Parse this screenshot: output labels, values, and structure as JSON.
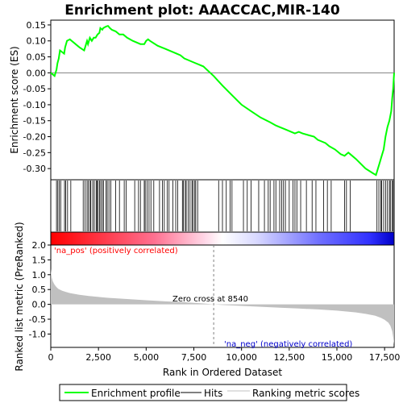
{
  "chart_data": {
    "type": "line",
    "title": "Enrichment plot: AAACCAC,MIR-140",
    "top_panel": {
      "ylabel": "Enrichment score (ES)",
      "ylim": [
        -0.335,
        0.165
      ],
      "yticks": [
        0.15,
        0.1,
        0.05,
        0.0,
        -0.05,
        -0.1,
        -0.15,
        -0.2,
        -0.25,
        -0.3
      ],
      "ytick_labels": [
        "0.15",
        "0.10",
        "0.05",
        "0.00",
        "-0.05",
        "-0.10",
        "-0.15",
        "-0.20",
        "-0.25",
        "-0.30"
      ],
      "series": [
        {
          "name": "Enrichment profile",
          "color": "#00ff00",
          "x": [
            0,
            200,
            300,
            350,
            420,
            480,
            700,
            750,
            850,
            1000,
            1500,
            1750,
            1800,
            1900,
            1950,
            2050,
            2150,
            2250,
            2350,
            2450,
            2550,
            2600,
            2700,
            2750,
            2900,
            3000,
            3100,
            3200,
            3400,
            3600,
            3800,
            4000,
            4300,
            4500,
            4700,
            4900,
            5000,
            5100,
            5200,
            5600,
            5800,
            6000,
            6200,
            6400,
            6600,
            6800,
            7000,
            7200,
            7400,
            7600,
            7800,
            8000,
            8540,
            9000,
            9500,
            10000,
            10500,
            11000,
            11500,
            11800,
            12000,
            12200,
            12400,
            12600,
            12800,
            13000,
            13200,
            13500,
            13800,
            14000,
            14200,
            14400,
            14600,
            14900,
            15200,
            15400,
            15600,
            15700,
            16000,
            16500,
            16900,
            17050,
            17150,
            17250,
            17350,
            17450,
            17550,
            17650,
            17750,
            17850,
            17900,
            17950,
            17980,
            18000
          ],
          "y": [
            0.0,
            -0.01,
            0.01,
            0.03,
            0.045,
            0.07,
            0.06,
            0.08,
            0.1,
            0.105,
            0.08,
            0.07,
            0.08,
            0.1,
            0.09,
            0.11,
            0.1,
            0.11,
            0.11,
            0.12,
            0.125,
            0.14,
            0.135,
            0.14,
            0.145,
            0.147,
            0.14,
            0.135,
            0.13,
            0.12,
            0.12,
            0.11,
            0.1,
            0.095,
            0.09,
            0.09,
            0.1,
            0.105,
            0.1,
            0.085,
            0.08,
            0.075,
            0.07,
            0.065,
            0.06,
            0.055,
            0.045,
            0.04,
            0.035,
            0.03,
            0.025,
            0.02,
            -0.01,
            -0.04,
            -0.07,
            -0.1,
            -0.12,
            -0.14,
            -0.155,
            -0.165,
            -0.17,
            -0.175,
            -0.18,
            -0.185,
            -0.19,
            -0.185,
            -0.19,
            -0.195,
            -0.2,
            -0.21,
            -0.215,
            -0.22,
            -0.23,
            -0.24,
            -0.255,
            -0.26,
            -0.25,
            -0.255,
            -0.27,
            -0.3,
            -0.315,
            -0.32,
            -0.3,
            -0.28,
            -0.26,
            -0.24,
            -0.2,
            -0.17,
            -0.15,
            -0.12,
            -0.08,
            -0.05,
            -0.02,
            0.0
          ]
        }
      ]
    },
    "hits_panel": {
      "hit_positions": [
        300,
        370,
        450,
        520,
        720,
        780,
        880,
        1050,
        1700,
        1800,
        1900,
        1960,
        2060,
        2100,
        2200,
        2280,
        2380,
        2420,
        2480,
        2560,
        2620,
        2700,
        2760,
        2900,
        2960,
        3050,
        3150,
        3400,
        3600,
        3850,
        3950,
        4400,
        4600,
        4700,
        4900,
        4950,
        5050,
        5150,
        5250,
        5400,
        5700,
        5850,
        5950,
        6100,
        6200,
        6400,
        6550,
        6650,
        6900,
        6950,
        7050,
        7100,
        7200,
        7300,
        7400,
        7450,
        7550,
        7600,
        7700,
        8800,
        9000,
        9200,
        9400,
        9500,
        10100,
        10300,
        10500,
        10900,
        11200,
        11400,
        11500,
        11700,
        11800,
        12000,
        12100,
        12200,
        12300,
        12500,
        12700,
        12800,
        12900,
        13100,
        13400,
        13700,
        13900,
        14300,
        14500,
        14700,
        15400,
        15500,
        15700,
        17100,
        17200,
        17300,
        17350,
        17450,
        17550,
        17650,
        17750,
        17800,
        17900,
        17950
      ],
      "ranking_gradient": [
        "#ff0000",
        "#ffb8c8",
        "#ffffff",
        "#b8b8ff",
        "#0000ff"
      ]
    },
    "bottom_panel": {
      "ylabel": "Ranked list metric (PreRanked)",
      "xlabel": "Rank in Ordered Dataset",
      "ylim": [
        -1.45,
        2.0
      ],
      "yticks": [
        2.0,
        1.5,
        1.0,
        0.5,
        0.0,
        -0.5,
        -1.0
      ],
      "ytick_labels": [
        "2.0",
        "1.5",
        "1.0",
        "0.5",
        "0.0",
        "-0.5",
        "-1.0"
      ],
      "metric_x": [
        0,
        20,
        50,
        100,
        200,
        300,
        400,
        600,
        800,
        1000,
        1500,
        2000,
        2500,
        3000,
        4000,
        5000,
        6000,
        7000,
        8000,
        8540,
        9000,
        10000,
        11000,
        12000,
        13000,
        14000,
        15000,
        16000,
        16500,
        17000,
        17300,
        17500,
        17700,
        17800,
        17900,
        17950,
        18000
      ],
      "metric_y": [
        1.2,
        1.05,
        0.9,
        0.78,
        0.66,
        0.58,
        0.52,
        0.46,
        0.42,
        0.38,
        0.32,
        0.28,
        0.25,
        0.22,
        0.18,
        0.14,
        0.1,
        0.07,
        0.03,
        0.0,
        -0.02,
        -0.05,
        -0.08,
        -0.11,
        -0.14,
        -0.17,
        -0.21,
        -0.27,
        -0.32,
        -0.38,
        -0.45,
        -0.52,
        -0.62,
        -0.72,
        -0.9,
        -1.1,
        -1.35
      ],
      "annotations": [
        "'na_pos' (positively correlated)",
        "Zero cross at 8540",
        "'na_neg' (negatively correlated)"
      ],
      "zero_cross": 8540
    },
    "xlim": [
      0,
      18000
    ],
    "xticks": [
      0,
      2500,
      5000,
      7500,
      10000,
      12500,
      15000,
      17500
    ],
    "xtick_labels": [
      "0",
      "2,500",
      "5,000",
      "7,500",
      "10,000",
      "12,500",
      "15,000",
      "17,500"
    ],
    "legend": {
      "placement": "bottom",
      "items": [
        {
          "label": "Enrichment profile",
          "color": "#00ff00"
        },
        {
          "label": "Hits",
          "color": "#000000"
        },
        {
          "label": "Ranking metric scores",
          "color": "#c0c0c0"
        }
      ]
    },
    "colors": {
      "pos_label": "#ff0000",
      "neg_label": "#0000cc",
      "metric_fill": "#c0c0c0",
      "zero_line": "#808080"
    }
  }
}
